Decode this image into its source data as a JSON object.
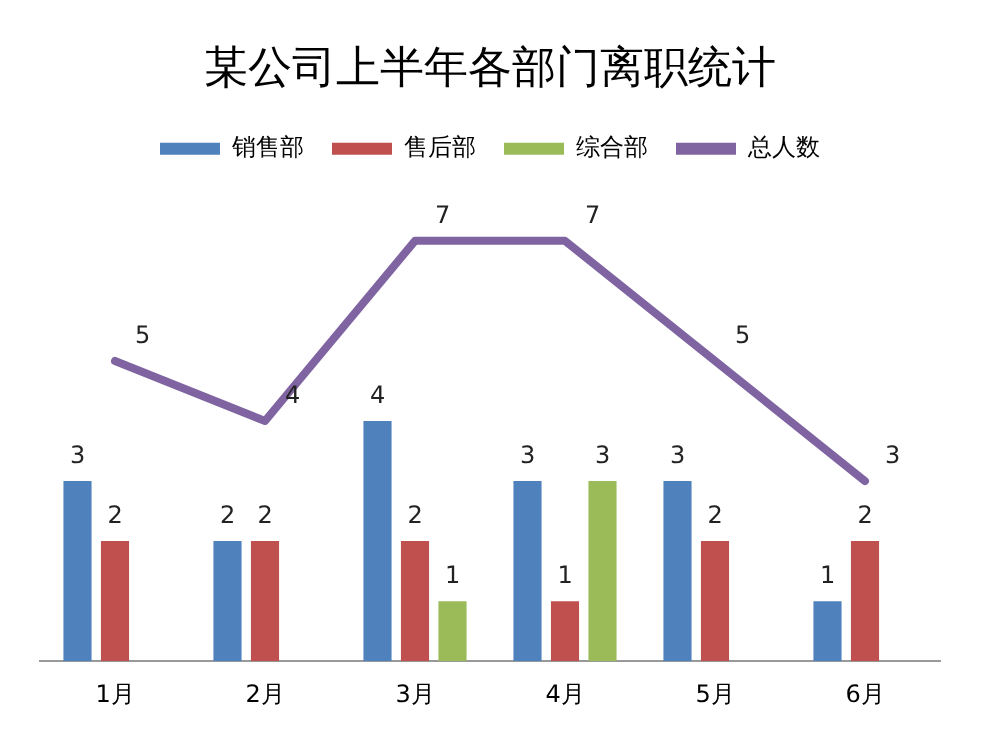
{
  "chart_data": {
    "type": "bar",
    "title": "某公司上半年各部门离职统计",
    "categories": [
      "1月",
      "2月",
      "3月",
      "4月",
      "5月",
      "6月"
    ],
    "series": [
      {
        "name": "销售部",
        "color": "#4f81bd",
        "values": [
          3,
          2,
          4,
          3,
          3,
          1
        ]
      },
      {
        "name": "售后部",
        "color": "#c0504d",
        "values": [
          2,
          2,
          2,
          1,
          2,
          2
        ]
      },
      {
        "name": "综合部",
        "color": "#9bbb59",
        "values": [
          null,
          null,
          1,
          3,
          null,
          null
        ]
      },
      {
        "name": "总人数",
        "type": "line",
        "color": "#8064a2",
        "values": [
          5,
          4,
          7,
          7,
          5,
          3
        ]
      }
    ],
    "tick_labels": "x",
    "grid": false,
    "legend": "top",
    "data_labels": true,
    "marker": "none"
  }
}
